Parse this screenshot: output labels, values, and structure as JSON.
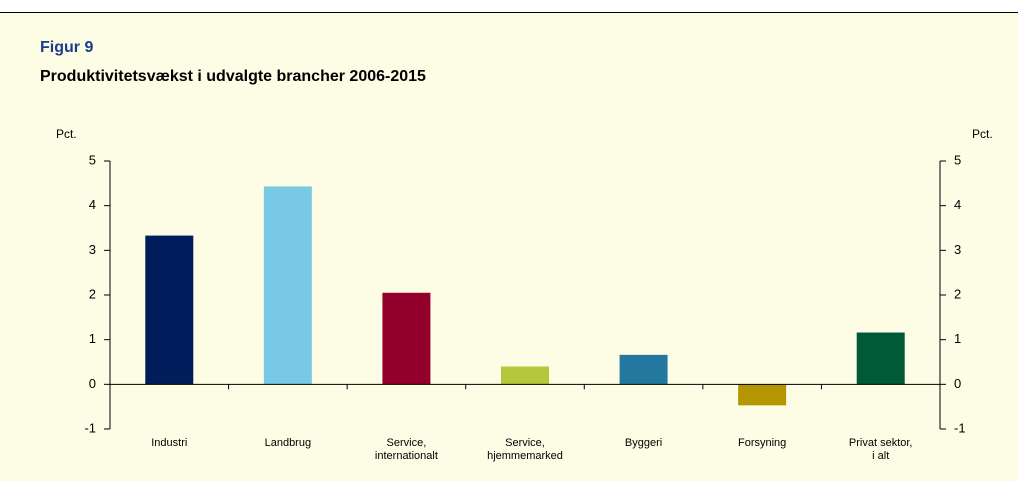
{
  "chart_data": {
    "type": "bar",
    "figure_label": "Figur 9",
    "title": "Produktivitetsvækst i udvalgte brancher 2006-2015",
    "ylabel": "Pct.",
    "y2label": "Pct.",
    "categories": [
      "Industri",
      "Landbrug",
      "Service,\ninternationalt",
      "Service,\nhjemmemarked",
      "Byggeri",
      "Forsyning",
      "Privat sektor,\ni alt"
    ],
    "values": [
      3.33,
      4.43,
      2.05,
      0.4,
      0.66,
      -0.47,
      1.16
    ],
    "colors": [
      "#001c5a",
      "#78c8e6",
      "#94002c",
      "#b4c83c",
      "#2378a0",
      "#b49600",
      "#005a37"
    ],
    "ylim": [
      -1,
      5
    ],
    "yticks": [
      -1,
      0,
      1,
      2,
      3,
      4,
      5
    ],
    "y2lim": [
      -1,
      5
    ],
    "y2ticks": [
      -1,
      0,
      1,
      2,
      3,
      4,
      5
    ],
    "grid": false
  }
}
